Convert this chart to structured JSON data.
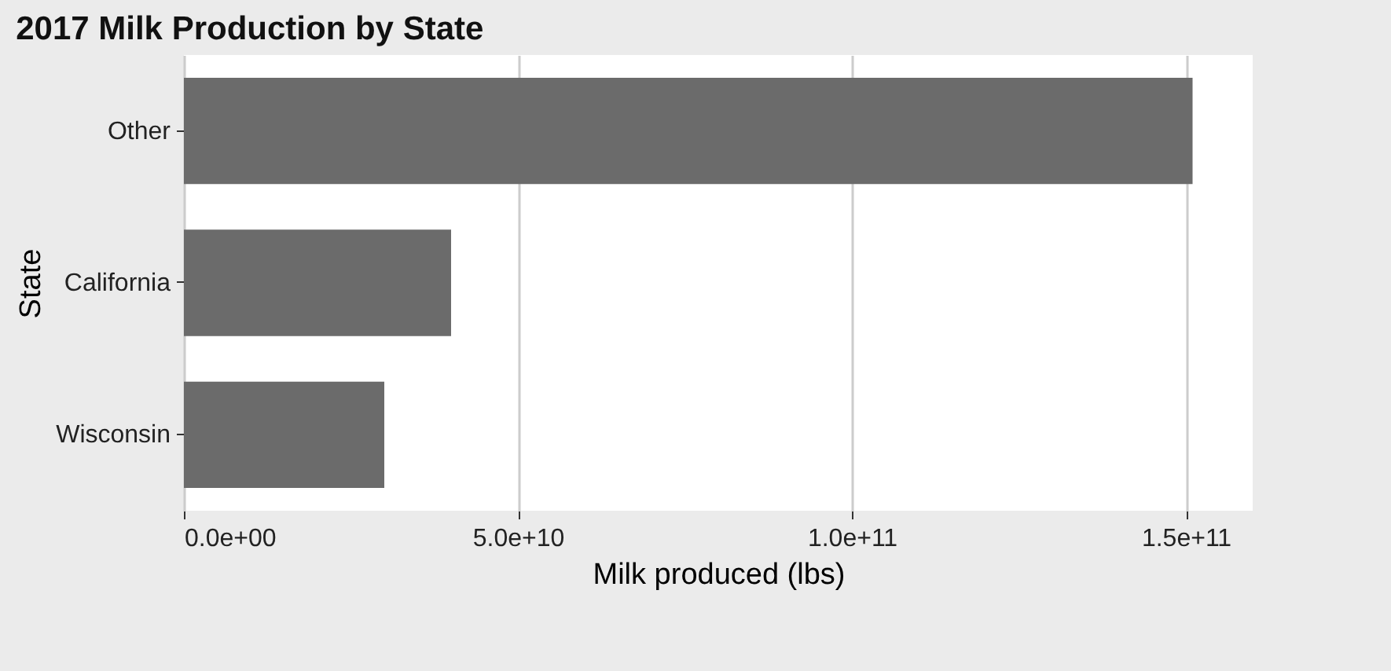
{
  "chart_data": {
    "type": "bar",
    "orientation": "horizontal",
    "title": "2017 Milk Production by State",
    "xlabel": "Milk produced (lbs)",
    "ylabel": "State",
    "categories": [
      "Other",
      "California",
      "Wisconsin"
    ],
    "values": [
      151000000000.0,
      40000000000.0,
      30000000000.0
    ],
    "color": "#6b6b6b",
    "xlim": [
      0,
      160000000000.0
    ],
    "xticks": [
      {
        "value": 0,
        "label": "0.0e+00"
      },
      {
        "value": 50000000000.0,
        "label": "5.0e+10"
      },
      {
        "value": 100000000000.0,
        "label": "1.0e+11"
      },
      {
        "value": 150000000000.0,
        "label": "1.5e+11"
      }
    ],
    "grid": "x"
  }
}
